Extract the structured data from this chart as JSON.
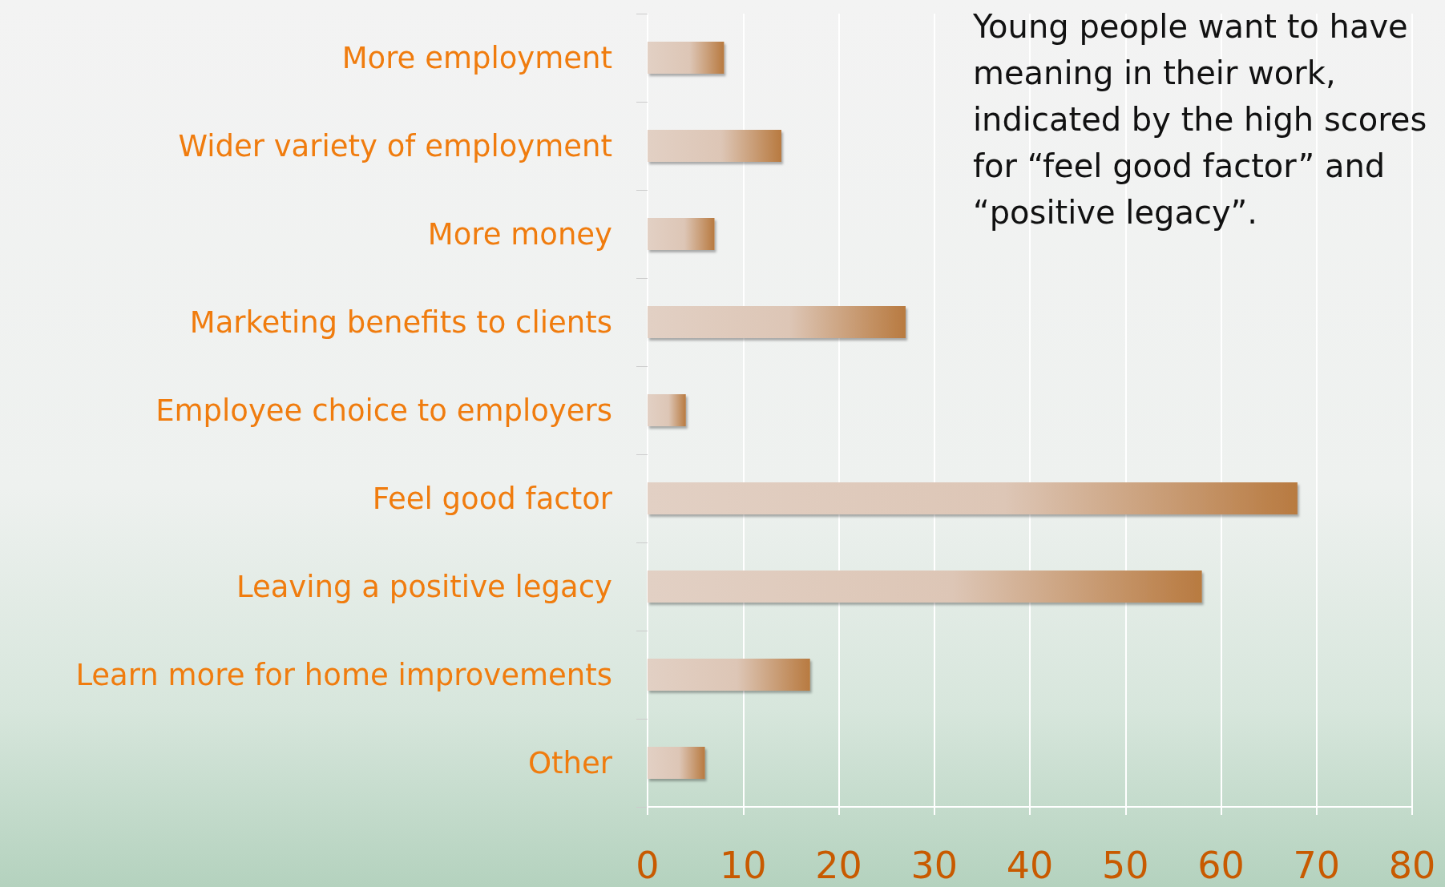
{
  "chart_data": {
    "type": "bar",
    "orientation": "horizontal",
    "categories": [
      "More employment",
      "Wider variety of employment",
      "More money",
      "Marketing benefits to clients",
      "Employee choice to employers",
      "Feel good factor",
      "Leaving a positive legacy",
      "Learn more for home improvements",
      "Other"
    ],
    "values": [
      8,
      14,
      7,
      27,
      4,
      68,
      58,
      17,
      6
    ],
    "color": "#b87a40",
    "xlim": [
      0,
      80
    ],
    "xticks": [
      0,
      10,
      20,
      30,
      40,
      50,
      60,
      70,
      80
    ],
    "grid": "x",
    "annotations": [
      "Young people want to have meaning in their work, indicated by the high scores for “feel good factor” and “positive legacy”."
    ]
  }
}
